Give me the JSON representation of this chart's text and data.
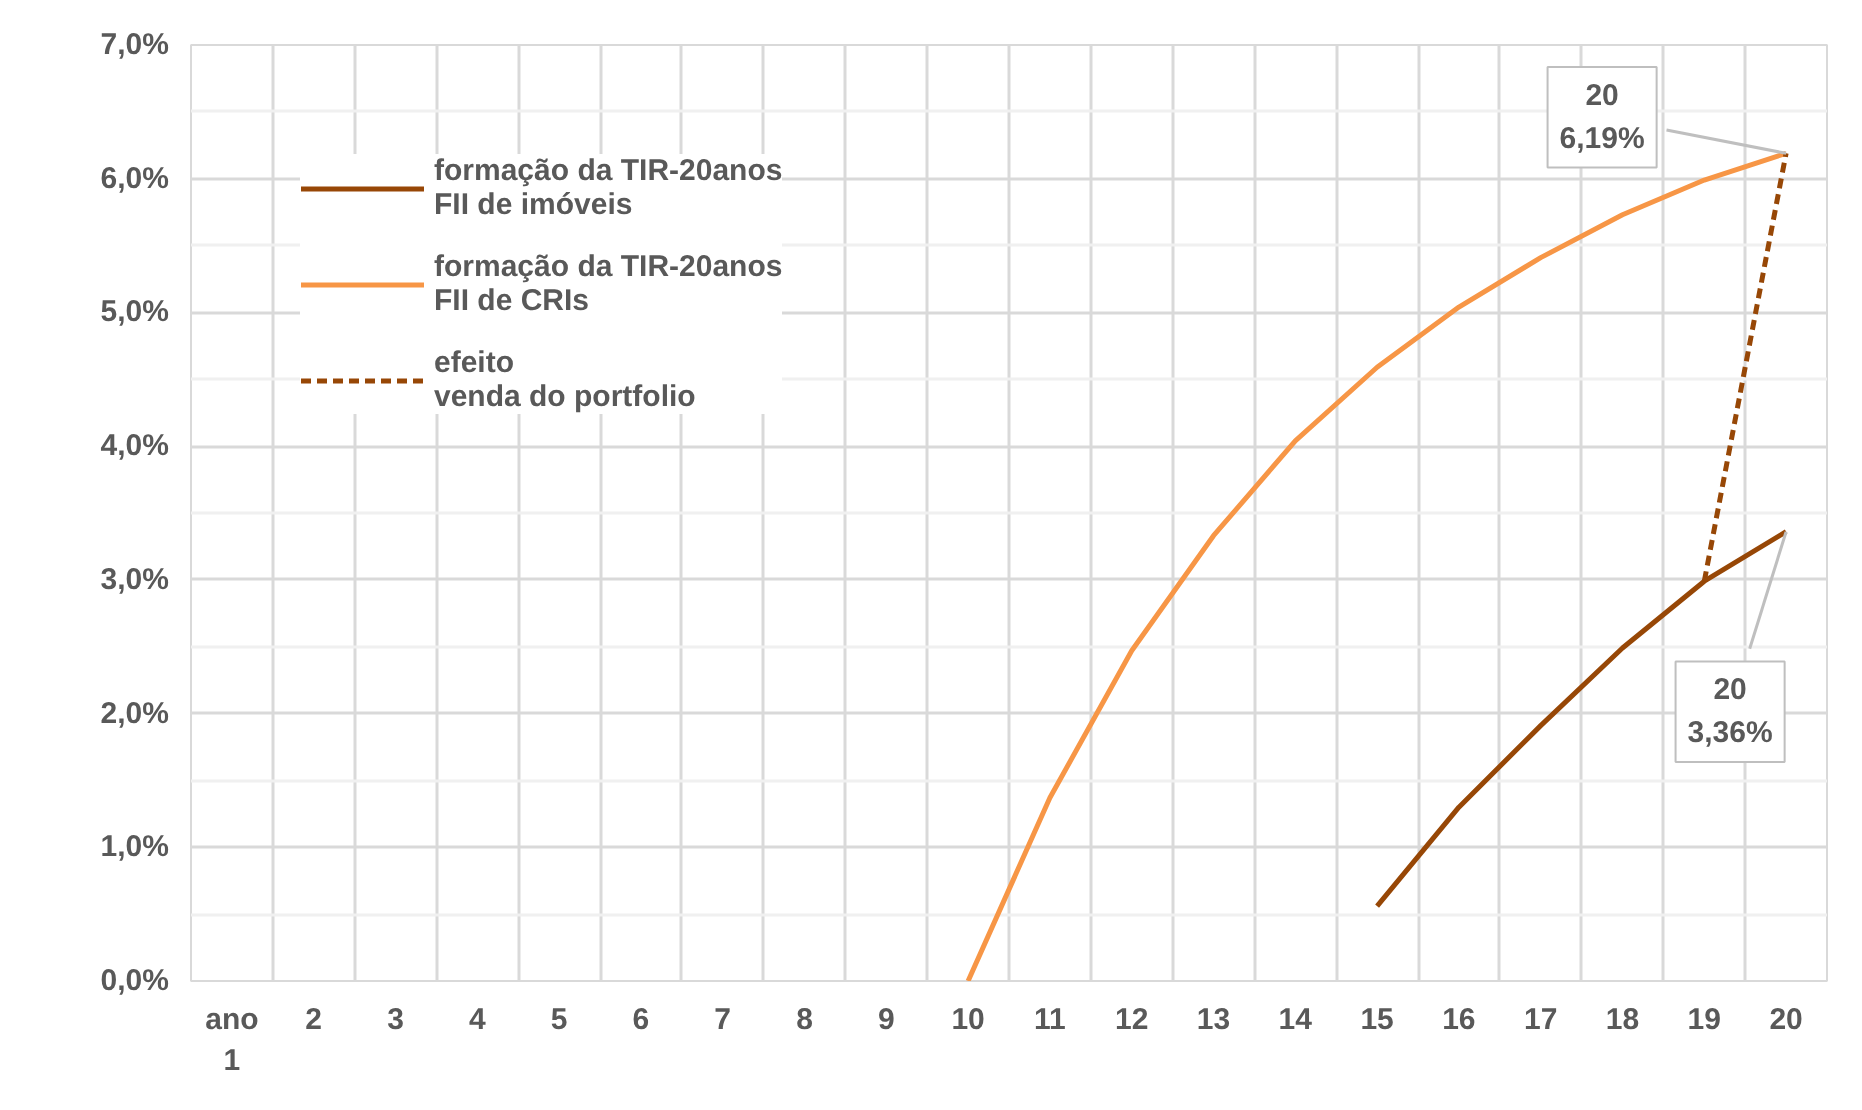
{
  "chart_data": {
    "type": "line",
    "categories": [
      "ano 1",
      "2",
      "3",
      "4",
      "5",
      "6",
      "7",
      "8",
      "9",
      "10",
      "11",
      "12",
      "13",
      "14",
      "15",
      "16",
      "17",
      "18",
      "19",
      "20"
    ],
    "series": [
      {
        "name": "formação da TIR-20anos\nFII de imóveis",
        "color": "#974706",
        "values": [
          null,
          null,
          null,
          null,
          null,
          null,
          null,
          null,
          null,
          null,
          null,
          null,
          null,
          null,
          0.56,
          1.3,
          1.91,
          2.49,
          2.99,
          3.36
        ]
      },
      {
        "name": "formação da TIR-20anos\nFII de CRIs",
        "color": "#f79646",
        "values": [
          null,
          null,
          null,
          null,
          null,
          null,
          null,
          null,
          null,
          0.0,
          1.37,
          2.47,
          3.33,
          4.04,
          4.59,
          5.04,
          5.41,
          5.73,
          5.99,
          6.19
        ]
      },
      {
        "name": "efeito\nvenda do portfolio",
        "color": "#974706",
        "line_style": "dashed",
        "values": [
          null,
          null,
          null,
          null,
          null,
          null,
          null,
          null,
          null,
          null,
          null,
          null,
          null,
          null,
          null,
          null,
          null,
          null,
          2.99,
          6.19
        ]
      }
    ],
    "ylim": [
      0,
      7
    ],
    "yticks": [
      {
        "value": 0,
        "label": "0,0%"
      },
      {
        "value": 1,
        "label": "1,0%"
      },
      {
        "value": 2,
        "label": "2,0%"
      },
      {
        "value": 3,
        "label": "3,0%"
      },
      {
        "value": 4,
        "label": "4,0%"
      },
      {
        "value": 5,
        "label": "5,0%"
      },
      {
        "value": 6,
        "label": "6,0%"
      },
      {
        "value": 7,
        "label": "7,0%"
      }
    ],
    "grid": true,
    "legend": "top left",
    "marker": "none",
    "line_style": "solid",
    "annotations": [
      {
        "text": "20\n6,19%",
        "x": "20",
        "y": 6.19
      },
      {
        "text": "20\n3,36%",
        "x": "20",
        "y": 3.36
      }
    ]
  }
}
